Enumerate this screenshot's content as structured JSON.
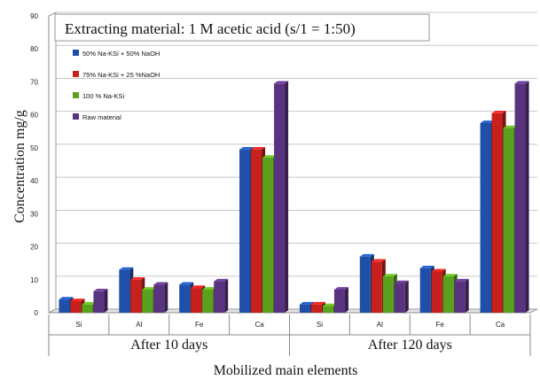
{
  "chart_data": {
    "type": "bar",
    "title": "Extracting material: 1 M acetic acid (s/1 = 1:50)",
    "xlabel": "Mobilized main elements",
    "ylabel": "Concentration mg/g",
    "ylim": [
      0,
      90
    ],
    "yticks": [
      "0",
      "10",
      "20",
      "30",
      "40",
      "50",
      "60",
      "70",
      "80",
      "90"
    ],
    "grid": true,
    "legend_position": "top-left",
    "categories": [
      "Si",
      "Al",
      "Fe",
      "Ca",
      "Si",
      "Al",
      "Fe",
      "Ca"
    ],
    "groups": [
      {
        "label": "After 10 days"
      },
      {
        "label": "After 120 days"
      }
    ],
    "series": [
      {
        "name": "50% Na-KSi + 50% NaOH",
        "color": "#1f4fa8",
        "values": [
          4,
          13,
          8.5,
          49.5,
          2.5,
          17,
          13.5,
          57.5
        ]
      },
      {
        "name": "75% Na-KSi + 25 %NaOH",
        "color": "#c8201c",
        "values": [
          3.5,
          10,
          7.5,
          49.5,
          2.5,
          15.5,
          12.5,
          60.5
        ]
      },
      {
        "name": "100 % Na-KSi",
        "color": "#5aa21e",
        "values": [
          2.5,
          7,
          7,
          47,
          2,
          11,
          11,
          56
        ]
      },
      {
        "name": "Raw material",
        "color": "#5a3380",
        "values": [
          6.5,
          8.5,
          9.5,
          69.5,
          7,
          9,
          9.5,
          69.5
        ]
      }
    ]
  }
}
